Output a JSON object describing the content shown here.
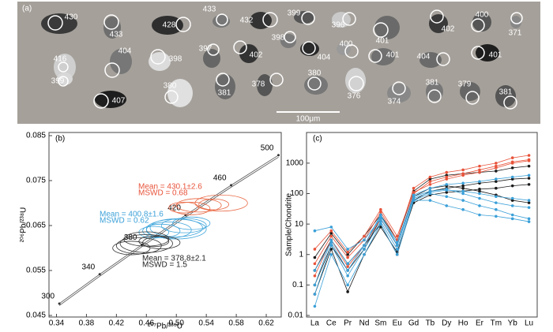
{
  "panel_a": {
    "label": "(a)",
    "ages": [
      430,
      433,
      428,
      433,
      432,
      399,
      396,
      401,
      402,
      400,
      371,
      416,
      399,
      404,
      398,
      397,
      402,
      398,
      404,
      400,
      401,
      404,
      401,
      407,
      380,
      381,
      378,
      380,
      376,
      374,
      381,
      379,
      381
    ],
    "scale_bar": "100μm"
  },
  "chart_data": [
    {
      "type": "concordia",
      "panel_label": "(b)",
      "x_label": "²⁰⁷Pb/²³⁵U",
      "y_label": "²⁰⁶Pb/²³⁸U",
      "xlim": [
        0.33,
        0.64
      ],
      "xticks": [
        0.34,
        0.38,
        0.42,
        0.46,
        {
          "value": 0.5,
          "label": "0.50"
        },
        0.54,
        0.58,
        0.62
      ],
      "ylim": [
        0.045,
        0.085
      ],
      "yticks": [
        0.045,
        0.055,
        0.065,
        0.075,
        0.085
      ],
      "concordia": {
        "ages": [
          300,
          340,
          380,
          420,
          460,
          500
        ],
        "x": [
          0.3438,
          0.3977,
          0.4539,
          0.5123,
          0.5731,
          0.6363
        ],
        "y": [
          0.04764,
          0.05416,
          0.06072,
          0.06732,
          0.07397,
          0.08065
        ]
      },
      "ellipse_groups": [
        {
          "color": "#e8643f",
          "x": [
            0.53,
            0.56,
            0.52,
            0.55,
            0.51
          ],
          "y": [
            0.0695,
            0.07,
            0.0688,
            0.0697,
            0.069
          ],
          "sx": [
            0.03,
            0.035,
            0.025,
            0.02,
            0.02
          ],
          "sy": [
            0.0015,
            0.0018,
            0.0014,
            0.0012,
            0.0012
          ]
        },
        {
          "color": "#45a8dc",
          "x": [
            0.49,
            0.5,
            0.48,
            0.51,
            0.52,
            0.47,
            0.5
          ],
          "y": [
            0.064,
            0.0645,
            0.0638,
            0.065,
            0.0655,
            0.0635,
            0.0642
          ],
          "sx": [
            0.03,
            0.035,
            0.025,
            0.03,
            0.025,
            0.02,
            0.04
          ],
          "sy": [
            0.0018,
            0.002,
            0.0015,
            0.0016,
            0.0014,
            0.0013,
            0.0022
          ]
        },
        {
          "color": "#333333",
          "x": [
            0.45,
            0.46,
            0.44,
            0.47,
            0.48,
            0.46
          ],
          "y": [
            0.0605,
            0.061,
            0.06,
            0.0615,
            0.0612,
            0.062
          ],
          "sx": [
            0.03,
            0.035,
            0.025,
            0.02,
            0.025,
            0.03
          ],
          "sy": [
            0.0018,
            0.002,
            0.0015,
            0.0012,
            0.0014,
            0.0016
          ]
        }
      ],
      "annotations": [
        {
          "text": "Mean = 430.1±2.6",
          "color": "#e8533a"
        },
        {
          "text": "MSWD = 0.68",
          "color": "#e8533a"
        },
        {
          "text": "Mean = 400.8±1.6",
          "color": "#3ba0d8"
        },
        {
          "text": "MSWD = 0.62",
          "color": "#3ba0d8"
        },
        {
          "text": "Mean = 378.8±2.1",
          "color": "#222222"
        },
        {
          "text": "MSWD = 1.5",
          "color": "#222222"
        }
      ]
    },
    {
      "type": "line",
      "panel_label": "(c)",
      "y_label": "Sample/Chondrite",
      "log_y": true,
      "categories": [
        "La",
        "Ce",
        "Pr",
        "Nd",
        "Sm",
        "Eu",
        "Gd",
        "Tb",
        "Dy",
        "Ho",
        "Er",
        "Tm",
        "Yb",
        "Lu"
      ],
      "ylim": [
        0.01,
        8000
      ],
      "yticks": [
        0.01,
        0.1,
        1,
        10,
        100,
        1000
      ],
      "series": [
        {
          "color": "#1a1a1a",
          "values": [
            0.3,
            3,
            0.5,
            2,
            10,
            1,
            60,
            120,
            150,
            180,
            220,
            250,
            300,
            320
          ]
        },
        {
          "color": "#1a1a1a",
          "values": [
            0.05,
            1.5,
            0.06,
            1,
            8,
            1.2,
            50,
            90,
            110,
            120,
            140,
            150,
            180,
            200
          ]
        },
        {
          "color": "#1a1a1a",
          "values": [
            0.8,
            5,
            1,
            4,
            20,
            3,
            120,
            300,
            400,
            450,
            500,
            550,
            700,
            800
          ]
        },
        {
          "color": "#1a1a1a",
          "values": [
            0.1,
            2,
            0.3,
            1.5,
            15,
            2,
            80,
            150,
            180,
            150,
            120,
            90,
            60,
            50
          ]
        },
        {
          "color": "#e8533a",
          "values": [
            0.5,
            4,
            0.8,
            3,
            25,
            3,
            150,
            350,
            500,
            600,
            800,
            1000,
            1500,
            1800
          ]
        },
        {
          "color": "#e8533a",
          "values": [
            0.2,
            3,
            0.4,
            2,
            15,
            2,
            100,
            250,
            350,
            450,
            600,
            800,
            1100,
            1300
          ]
        },
        {
          "color": "#e8533a",
          "values": [
            1.5,
            6,
            1.2,
            4,
            30,
            4,
            110,
            200,
            300,
            400,
            500,
            700,
            1000,
            1200
          ]
        },
        {
          "color": "#3ba0d8",
          "values": [
            0.02,
            1,
            0.1,
            1,
            10,
            1,
            60,
            100,
            80,
            60,
            40,
            30,
            20,
            15
          ]
        },
        {
          "color": "#3ba0d8",
          "values": [
            6,
            8,
            1.5,
            3,
            15,
            2,
            70,
            110,
            130,
            120,
            100,
            80,
            70,
            60
          ]
        },
        {
          "color": "#3ba0d8",
          "values": [
            0.05,
            2,
            0.2,
            1.5,
            12,
            1.5,
            60,
            60,
            40,
            30,
            20,
            18,
            15,
            12
          ]
        },
        {
          "color": "#3ba0d8",
          "values": [
            0.1,
            3,
            0.5,
            2,
            20,
            2,
            90,
            150,
            200,
            220,
            250,
            300,
            350,
            400
          ]
        },
        {
          "color": "#3ba0d8",
          "values": [
            0.3,
            2.5,
            0.3,
            2,
            18,
            2.5,
            80,
            120,
            140,
            100,
            70,
            50,
            40,
            35
          ]
        }
      ]
    }
  ]
}
